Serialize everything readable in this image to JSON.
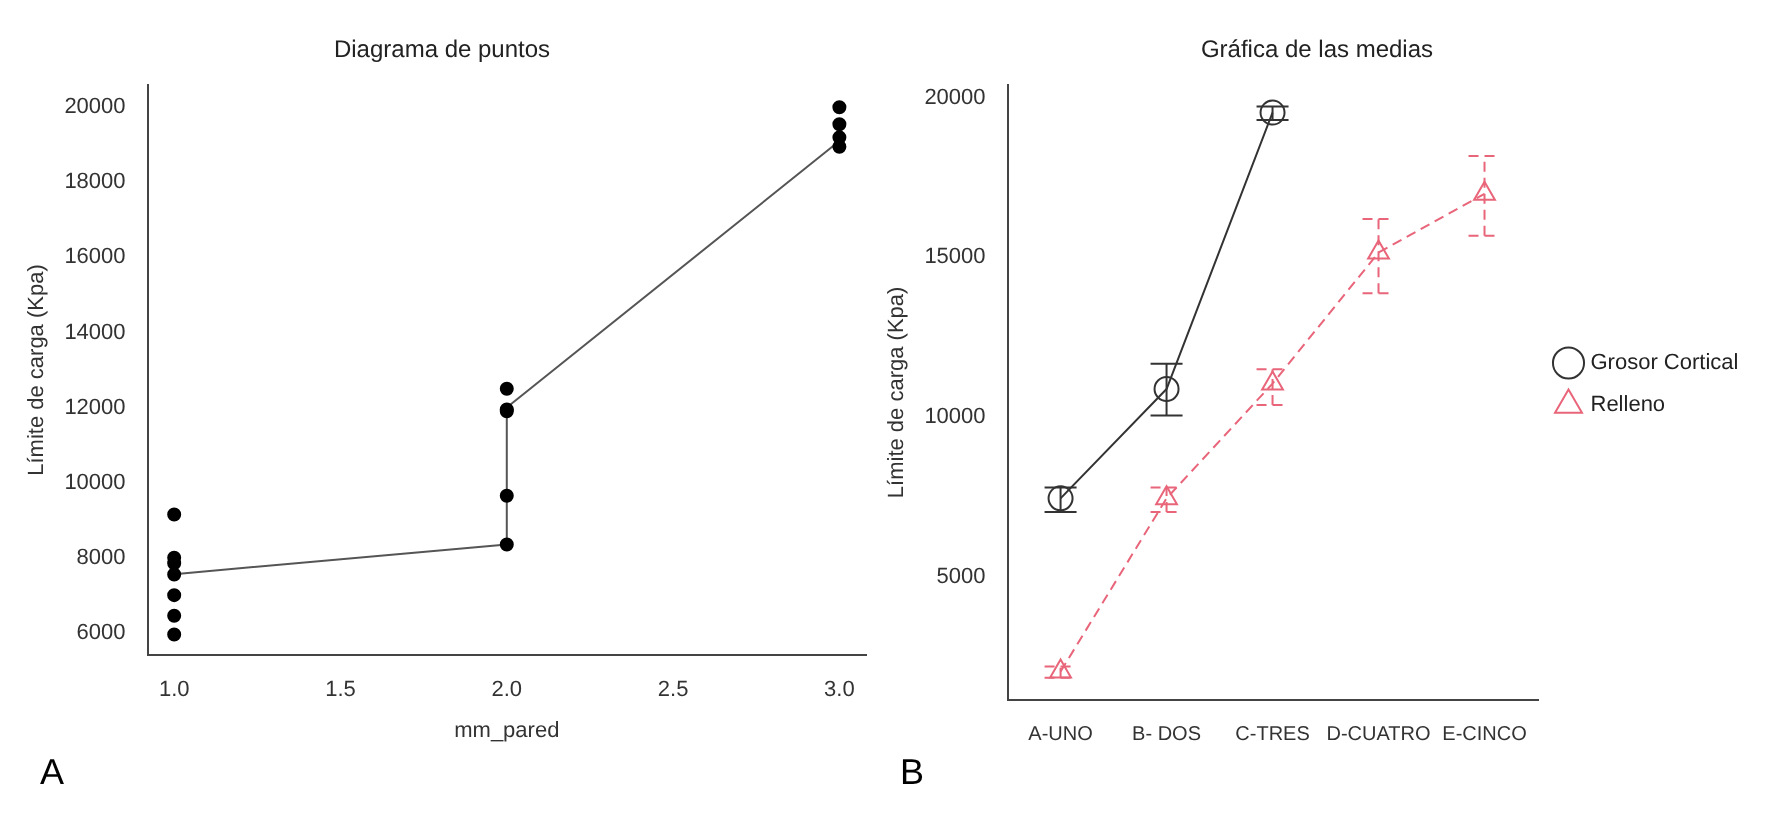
{
  "chart_data": [
    {
      "type": "scatter",
      "title": "Diagrama de puntos",
      "xlabel": "mm_pared",
      "ylabel": "Límite de carga (Kpa)",
      "xlim": [
        0.92,
        3.08
      ],
      "xticks": [
        {
          "value": 1,
          "label": "1.0"
        },
        {
          "value": 1.5,
          "label": "1.5"
        },
        {
          "value": 2,
          "label": "2.0"
        },
        {
          "value": 2.5,
          "label": "2.5"
        },
        {
          "value": 3,
          "label": "3.0"
        }
      ],
      "ylim": [
        5400,
        20600
      ],
      "yticks": [
        6000,
        8000,
        10000,
        12000,
        14000,
        16000,
        18000,
        20000
      ],
      "grid": false,
      "legend": false,
      "annotations": [
        "A"
      ],
      "series": [
        {
          "type": "scatter",
          "color": "#000000",
          "marker": "circle",
          "x": [
            1,
            1,
            1,
            1,
            1,
            1,
            1,
            2,
            2,
            2,
            2,
            2,
            3,
            3,
            3,
            3
          ],
          "values": [
            9150,
            8000,
            7850,
            7550,
            7000,
            6450,
            5950,
            12500,
            11950,
            11900,
            9650,
            8350,
            20000,
            19550,
            19200,
            18950
          ]
        },
        {
          "type": "line",
          "color": "#555555",
          "marker": "none",
          "line_style": "solid",
          "x": [
            1,
            2,
            2,
            3
          ],
          "values": [
            7560,
            8350,
            12000,
            19100
          ]
        }
      ]
    },
    {
      "type": "line",
      "title": "Gráfica de las medias",
      "ylabel": "Límite de carga (Kpa)",
      "categories": [
        "A-UNO",
        "B- DOS",
        "C-TRES",
        "D-CUATRO",
        "E-CINCO"
      ],
      "ylim": [
        1150,
        20400
      ],
      "yticks": [
        5000,
        10000,
        15000,
        20000
      ],
      "grid": false,
      "legend": "right",
      "annotations": [
        "B"
      ],
      "series": [
        {
          "name": "Grosor Cortical",
          "color": "#333333",
          "marker": "circle",
          "line_style": "solid",
          "values": [
            7460,
            10880,
            19530,
            null,
            null
          ],
          "errors": [
            [
              7030,
              7800
            ],
            [
              10050,
              11670
            ],
            [
              19300,
              19720
            ],
            null,
            null
          ]
        },
        {
          "name": "Relleno",
          "color": "#e8657a",
          "marker": "triangle",
          "line_style": "dashed",
          "values": [
            2040,
            7460,
            11050,
            15150,
            16990
          ],
          "errors": [
            [
              1850,
              2200
            ],
            [
              7030,
              7800
            ],
            [
              10380,
              11500
            ],
            [
              13880,
              16200
            ],
            [
              15680,
              18170
            ]
          ]
        }
      ]
    }
  ]
}
